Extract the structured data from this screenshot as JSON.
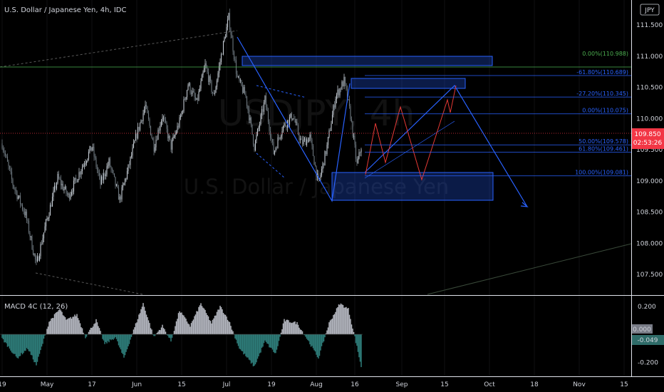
{
  "chart_data": {
    "type": "candlestick",
    "title": "U.S. Dollar / Japanese Yen, 4h, IDC",
    "symbol": "USDJPY, 4h",
    "description": "U.S. Dollar / Japanese Yen",
    "currency_button": "JPY",
    "last_price": "109.850",
    "countdown": "02:53:26",
    "price_axis": {
      "ylim": [
        107.17,
        111.9
      ],
      "ticks": [
        "111.500",
        "111.000",
        "110.500",
        "110.000",
        "109.500",
        "109.000",
        "108.500",
        "108.000",
        "107.500"
      ]
    },
    "time_axis": {
      "ticks": [
        {
          "label": "19",
          "i": 0
        },
        {
          "label": "May",
          "i": 42
        },
        {
          "label": "17",
          "i": 84
        },
        {
          "label": "Jun",
          "i": 126
        },
        {
          "label": "15",
          "i": 168
        },
        {
          "label": "Jul",
          "i": 210
        },
        {
          "label": "19",
          "i": 252
        },
        {
          "label": "Aug",
          "i": 294
        },
        {
          "label": "16",
          "i": 330
        },
        {
          "label": "Sep",
          "i": 374
        },
        {
          "label": "15",
          "i": 414
        },
        {
          "label": "Oct",
          "i": 456
        },
        {
          "label": "18",
          "i": 498
        },
        {
          "label": "Nov",
          "i": 540
        },
        {
          "label": "15",
          "i": 582
        }
      ]
    },
    "price_path": [
      {
        "i": 0,
        "p": 109.6
      },
      {
        "i": 10,
        "p": 108.95
      },
      {
        "i": 22,
        "p": 108.45
      },
      {
        "i": 32,
        "p": 107.65
      },
      {
        "i": 40,
        "p": 108.25
      },
      {
        "i": 52,
        "p": 109.05
      },
      {
        "i": 62,
        "p": 108.75
      },
      {
        "i": 74,
        "p": 109.2
      },
      {
        "i": 84,
        "p": 109.55
      },
      {
        "i": 92,
        "p": 108.95
      },
      {
        "i": 100,
        "p": 109.3
      },
      {
        "i": 110,
        "p": 108.7
      },
      {
        "i": 118,
        "p": 109.2
      },
      {
        "i": 126,
        "p": 109.75
      },
      {
        "i": 134,
        "p": 110.2
      },
      {
        "i": 142,
        "p": 109.55
      },
      {
        "i": 150,
        "p": 110.05
      },
      {
        "i": 158,
        "p": 109.55
      },
      {
        "i": 166,
        "p": 109.95
      },
      {
        "i": 174,
        "p": 110.55
      },
      {
        "i": 182,
        "p": 110.25
      },
      {
        "i": 190,
        "p": 110.85
      },
      {
        "i": 198,
        "p": 110.35
      },
      {
        "i": 206,
        "p": 111.1
      },
      {
        "i": 212,
        "p": 111.62
      },
      {
        "i": 220,
        "p": 110.65
      },
      {
        "i": 228,
        "p": 110.35
      },
      {
        "i": 236,
        "p": 109.55
      },
      {
        "i": 246,
        "p": 110.3
      },
      {
        "i": 254,
        "p": 109.45
      },
      {
        "i": 262,
        "p": 109.85
      },
      {
        "i": 272,
        "p": 110.05
      },
      {
        "i": 280,
        "p": 109.6
      },
      {
        "i": 288,
        "p": 109.7
      },
      {
        "i": 296,
        "p": 108.95
      },
      {
        "i": 304,
        "p": 109.55
      },
      {
        "i": 312,
        "p": 110.35
      },
      {
        "i": 320,
        "p": 110.6
      },
      {
        "i": 326,
        "p": 110.05
      },
      {
        "i": 332,
        "p": 109.25
      },
      {
        "i": 336,
        "p": 109.55
      }
    ],
    "fibonacci_levels": [
      {
        "label": "0.00%(110.988)",
        "price": 110.988,
        "color": "#4caf50"
      },
      {
        "label": "-61.80%(110.689)",
        "price": 110.689,
        "color": "#2962ff"
      },
      {
        "label": "-27.20%(110.345)",
        "price": 110.345,
        "color": "#2962ff"
      },
      {
        "label": "0.00%(110.075)",
        "price": 110.075,
        "color": "#2962ff"
      },
      {
        "label": "50.00%(109.578)",
        "price": 109.578,
        "color": "#2962ff"
      },
      {
        "label": "61.80%(109.461)",
        "price": 109.461,
        "color": "#2962ff"
      },
      {
        "label": "100.00%(109.081)",
        "price": 109.081,
        "color": "#2962ff"
      }
    ],
    "macd": {
      "title": "MACD 4C (12, 26)",
      "ticks": [
        "0.200",
        "-0.200"
      ],
      "zero_label": "0.000",
      "value_label": "-0.049",
      "ylim": [
        -0.3,
        0.27
      ],
      "hist_path": [
        {
          "i": 0,
          "v": -0.03
        },
        {
          "i": 14,
          "v": -0.17
        },
        {
          "i": 24,
          "v": -0.1
        },
        {
          "i": 32,
          "v": -0.22
        },
        {
          "i": 44,
          "v": 0.09
        },
        {
          "i": 54,
          "v": 0.18
        },
        {
          "i": 60,
          "v": 0.1
        },
        {
          "i": 70,
          "v": 0.14
        },
        {
          "i": 78,
          "v": -0.02
        },
        {
          "i": 88,
          "v": 0.1
        },
        {
          "i": 96,
          "v": -0.07
        },
        {
          "i": 106,
          "v": -0.02
        },
        {
          "i": 114,
          "v": -0.17
        },
        {
          "i": 124,
          "v": 0.05
        },
        {
          "i": 132,
          "v": 0.22
        },
        {
          "i": 142,
          "v": -0.02
        },
        {
          "i": 150,
          "v": 0.06
        },
        {
          "i": 158,
          "v": -0.05
        },
        {
          "i": 166,
          "v": 0.17
        },
        {
          "i": 176,
          "v": 0.06
        },
        {
          "i": 186,
          "v": 0.22
        },
        {
          "i": 196,
          "v": 0.08
        },
        {
          "i": 204,
          "v": 0.2
        },
        {
          "i": 212,
          "v": 0.1
        },
        {
          "i": 222,
          "v": -0.1
        },
        {
          "i": 236,
          "v": -0.23
        },
        {
          "i": 246,
          "v": -0.05
        },
        {
          "i": 256,
          "v": -0.14
        },
        {
          "i": 264,
          "v": 0.1
        },
        {
          "i": 276,
          "v": 0.08
        },
        {
          "i": 286,
          "v": -0.04
        },
        {
          "i": 296,
          "v": -0.17
        },
        {
          "i": 306,
          "v": 0.08
        },
        {
          "i": 316,
          "v": 0.22
        },
        {
          "i": 324,
          "v": 0.18
        },
        {
          "i": 330,
          "v": -0.02
        },
        {
          "i": 336,
          "v": -0.23
        }
      ]
    }
  },
  "colors": {
    "background": "#000000",
    "up": "#c5ccd4",
    "down": "#6e7880",
    "drawing": "#2962ff",
    "projection": "#e53935",
    "macd_up": "#b2b5be",
    "macd_down": "#2e7d7a",
    "last_price": "#f23645",
    "text": "#d1d4dc",
    "trend": "#525252"
  }
}
